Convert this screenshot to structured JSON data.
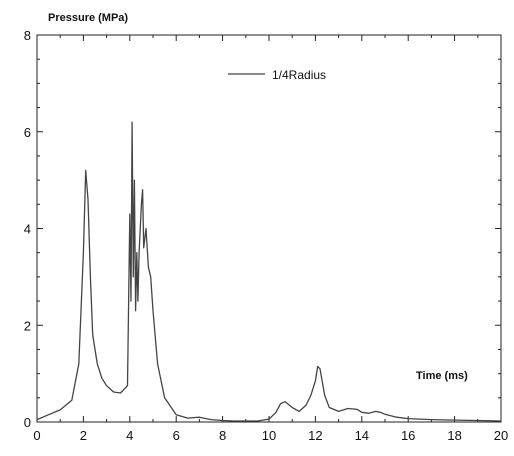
{
  "chart_data": {
    "type": "line",
    "xlabel": "Time (ms)",
    "ylabel": "Pressure (MPa)",
    "xlim": [
      0,
      20
    ],
    "ylim": [
      0,
      8
    ],
    "x_ticks": [
      "0",
      "2",
      "4",
      "6",
      "8",
      "10",
      "12",
      "14",
      "16",
      "18",
      "20"
    ],
    "y_ticks": [
      "0",
      "2",
      "4",
      "6",
      "8"
    ],
    "grid": false,
    "legend_position": "top-right",
    "series": [
      {
        "name": "1/4Radius",
        "color": "#444444",
        "x": [
          0,
          0.5,
          1.0,
          1.5,
          1.8,
          2.0,
          2.1,
          2.2,
          2.3,
          2.4,
          2.6,
          2.8,
          3.0,
          3.3,
          3.6,
          3.9,
          4.0,
          4.05,
          4.1,
          4.15,
          4.2,
          4.25,
          4.3,
          4.35,
          4.4,
          4.5,
          4.55,
          4.6,
          4.7,
          4.8,
          4.9,
          5.0,
          5.2,
          5.5,
          6.0,
          6.5,
          7.0,
          7.5,
          8.0,
          8.5,
          9.0,
          9.5,
          10.0,
          10.3,
          10.5,
          10.7,
          11.0,
          11.3,
          11.6,
          11.8,
          12.0,
          12.1,
          12.2,
          12.4,
          12.6,
          13.0,
          13.4,
          13.8,
          14.0,
          14.3,
          14.6,
          14.8,
          15.0,
          15.5,
          16.0,
          17.0,
          18.0,
          19.0,
          20.0
        ],
        "values": [
          0.05,
          0.15,
          0.25,
          0.45,
          1.2,
          3.5,
          5.2,
          4.6,
          3.0,
          1.8,
          1.2,
          0.9,
          0.75,
          0.62,
          0.6,
          0.75,
          4.3,
          2.5,
          6.2,
          3.0,
          5.0,
          2.3,
          3.5,
          2.5,
          3.5,
          4.5,
          4.8,
          3.6,
          4.0,
          3.2,
          3.0,
          2.3,
          1.2,
          0.5,
          0.15,
          0.08,
          0.1,
          0.05,
          0.03,
          0.02,
          0.02,
          0.02,
          0.06,
          0.2,
          0.38,
          0.42,
          0.3,
          0.22,
          0.35,
          0.55,
          0.85,
          1.15,
          1.1,
          0.55,
          0.3,
          0.22,
          0.28,
          0.26,
          0.2,
          0.18,
          0.22,
          0.2,
          0.16,
          0.1,
          0.07,
          0.05,
          0.04,
          0.03,
          0.02
        ]
      }
    ]
  }
}
